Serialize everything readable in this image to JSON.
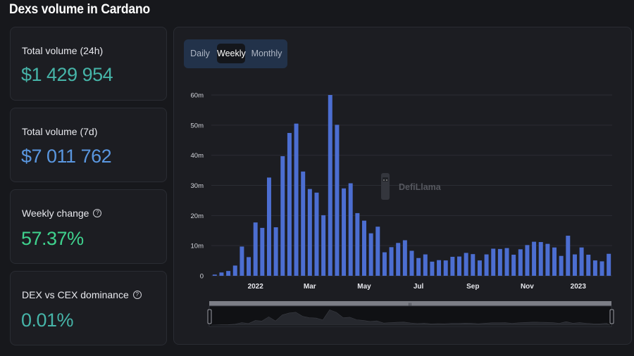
{
  "page": {
    "title": "Dexs volume in Cardano"
  },
  "stats": [
    {
      "label": "Total volume (24h)",
      "value": "$1 429 954",
      "color": "#46b4a8",
      "help": false
    },
    {
      "label": "Total volume (7d)",
      "value": "$7 011 762",
      "color": "#5a97e0",
      "help": false
    },
    {
      "label": "Weekly change",
      "value": "57.37%",
      "color": "#3fd28e",
      "help": true
    },
    {
      "label": "DEX vs CEX dominance",
      "value": "0.01%",
      "color": "#46b4a8",
      "help": true
    }
  ],
  "tabs": {
    "daily": "Daily",
    "weekly": "Weekly",
    "monthly": "Monthly",
    "selected": "Weekly"
  },
  "watermark": "DefiLlama",
  "brush_handle": "III",
  "chart_data": {
    "type": "bar",
    "series": [
      {
        "values": [
          0.4,
          1.1,
          1.6,
          3.4,
          9.7,
          6.2,
          17.7,
          15.9,
          32.6,
          16.1,
          39.7,
          47.4,
          50.5,
          34.6,
          28.8,
          27.6,
          20.1,
          60.0,
          50.1,
          29.0,
          30.7,
          20.8,
          18.3,
          14.1,
          16.3,
          7.8,
          9.5,
          10.9,
          11.8,
          8.3,
          5.9,
          7.1,
          4.7,
          5.2,
          5.1,
          6.3,
          6.4,
          7.6,
          7.2,
          5.1,
          7.1,
          9.0,
          8.9,
          9.2,
          7.0,
          8.8,
          10.2,
          11.3,
          11.2,
          10.6,
          9.4,
          6.6,
          13.3,
          7.1,
          9.4,
          7.0,
          5.1,
          4.8,
          7.3
        ],
        "color": "#4c6ed1"
      }
    ],
    "x_tick_labels": [
      "2022",
      "Mar",
      "May",
      "Jul",
      "Sep",
      "Nov",
      "2023"
    ],
    "x_tick_label_index": [
      12,
      28,
      44,
      60,
      76,
      92,
      107
    ],
    "y_tick_labels": [
      "0",
      "10m",
      "20m",
      "30m",
      "40m",
      "50m",
      "60m"
    ],
    "y_unit": "m",
    "ylim": [
      0,
      60
    ],
    "grid": true,
    "legend": "none"
  }
}
